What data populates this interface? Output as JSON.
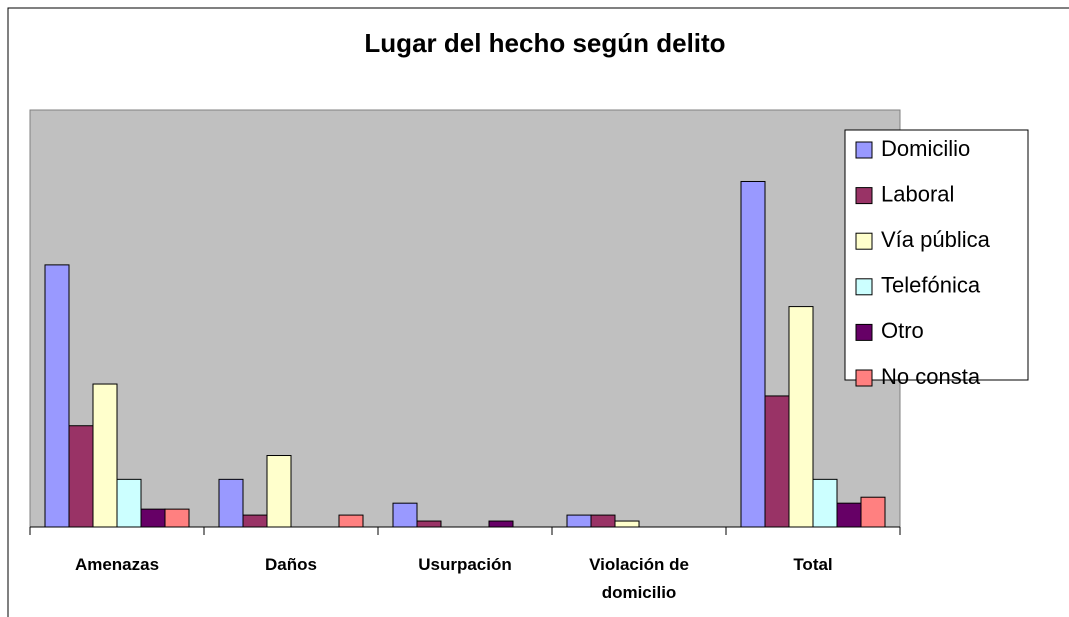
{
  "chart_data": {
    "type": "bar",
    "title": "Lugar del hecho según delito",
    "categories": [
      "Amenazas",
      "Daños",
      "Usurpación",
      "Violación de domicilio",
      "Total"
    ],
    "series": [
      {
        "name": "Domicilio",
        "color": "#9999ff",
        "values": [
          44,
          8,
          4,
          2,
          58
        ]
      },
      {
        "name": "Laboral",
        "color": "#993366",
        "values": [
          17,
          2,
          1,
          2,
          22
        ]
      },
      {
        "name": "Vía pública",
        "color": "#ffffcc",
        "values": [
          24,
          12,
          0,
          1,
          37
        ]
      },
      {
        "name": "Telefónica",
        "color": "#ccffff",
        "values": [
          8,
          0,
          0,
          0,
          8
        ]
      },
      {
        "name": "Otro",
        "color": "#660066",
        "values": [
          3,
          0,
          1,
          0,
          4
        ]
      },
      {
        "name": "No consta",
        "color": "#ff8080",
        "values": [
          3,
          2,
          0,
          0,
          5
        ]
      }
    ],
    "ylim": [
      0,
      70
    ],
    "grid": false,
    "legend": "right"
  }
}
